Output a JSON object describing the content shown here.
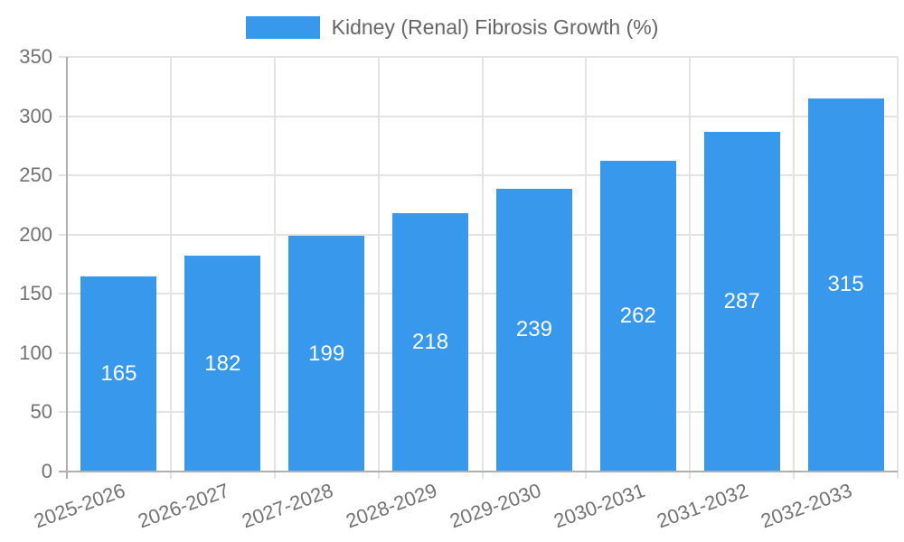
{
  "chart_data": {
    "type": "bar",
    "title": "Kidney (Renal) Fibrosis Growth (%)",
    "categories": [
      "2025-2026",
      "2026-2027",
      "2027-2028",
      "2028-2029",
      "2029-2030",
      "2030-2031",
      "2031-2032",
      "2032-2033"
    ],
    "values": [
      165,
      182,
      199,
      218,
      239,
      262,
      287,
      315
    ],
    "xlabel": "",
    "ylabel": "",
    "ylim": [
      0,
      350
    ],
    "yticks": [
      0,
      50,
      100,
      150,
      200,
      250,
      300,
      350
    ],
    "grid": true,
    "legend_position": "top",
    "bar_value_labels": "centered-white",
    "colors": {
      "bar": "#3898EC",
      "bar_label": "#FFFFFF",
      "legend_text": "#666666",
      "axis_text": "#737373",
      "grid_line": "#E3E3E3",
      "axis_line": "#B0B0B0"
    }
  }
}
